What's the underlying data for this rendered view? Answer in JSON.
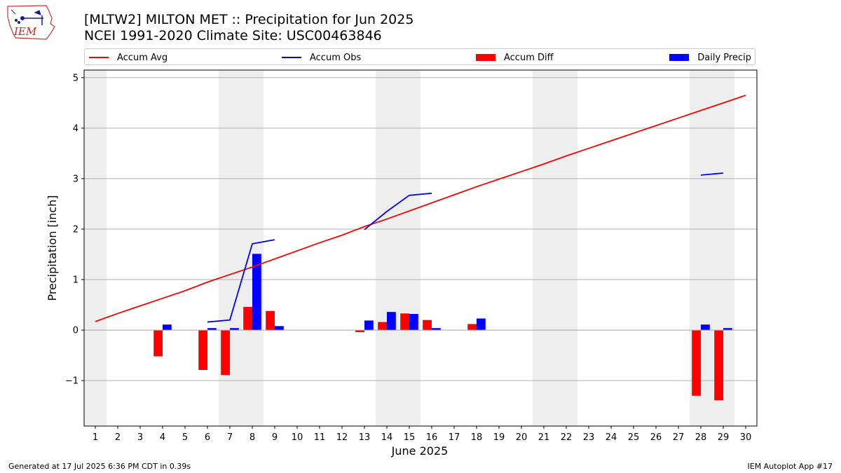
{
  "header": {
    "title_line1": "[MLTW2] MILTON MET :: Precipitation for Jun 2025",
    "title_line2": "NCEI 1991-2020 Climate Site: USC00463846"
  },
  "logo": {
    "text": "IEM"
  },
  "footer": {
    "left": "Generated at 17 Jul 2025 6:36 PM CDT in 0.39s",
    "right": "IEM Autoplot App #17"
  },
  "legend": {
    "placement": "top, above plot",
    "items": [
      {
        "label": "Accum Avg",
        "color": "#ff0000",
        "kind": "line"
      },
      {
        "label": "Accum Obs",
        "color": "#0000ff",
        "kind": "line"
      },
      {
        "label": "Accum Diff",
        "color": "#ff0000",
        "kind": "bar"
      },
      {
        "label": "Daily Precip",
        "color": "#0000ff",
        "kind": "bar"
      }
    ]
  },
  "chart_data": {
    "type": "bar",
    "xlabel": "June 2025",
    "ylabel": "Precipitation [inch]",
    "xlim": [
      0.5,
      30.5
    ],
    "ylim": [
      -1.9,
      5.15
    ],
    "grid": "horizontal",
    "x_ticks": [
      1,
      2,
      3,
      4,
      5,
      6,
      7,
      8,
      9,
      10,
      11,
      12,
      13,
      14,
      15,
      16,
      17,
      18,
      19,
      20,
      21,
      22,
      23,
      24,
      25,
      26,
      27,
      28,
      29,
      30
    ],
    "y_ticks": [
      -1,
      0,
      1,
      2,
      3,
      4,
      5
    ],
    "y_tick_labels": [
      "−1",
      "0",
      "1",
      "2",
      "3",
      "4",
      "5"
    ],
    "weekend_shading": [
      [
        0.5,
        1.5
      ],
      [
        6.5,
        8.5
      ],
      [
        13.5,
        15.5
      ],
      [
        20.5,
        22.5
      ],
      [
        27.5,
        29.5
      ]
    ],
    "shade_color": "#eeeeee",
    "series": [
      {
        "name": "Accum Avg",
        "type": "line",
        "color": "#ff0000",
        "x": [
          1,
          2,
          3,
          4,
          5,
          6,
          7,
          8,
          9,
          10,
          11,
          12,
          13,
          14,
          15,
          16,
          17,
          18,
          19,
          20,
          21,
          22,
          23,
          24,
          25,
          26,
          27,
          28,
          29,
          30
        ],
        "y": [
          0.17,
          0.33,
          0.48,
          0.63,
          0.78,
          0.95,
          1.1,
          1.25,
          1.41,
          1.57,
          1.73,
          1.88,
          2.05,
          2.2,
          2.36,
          2.52,
          2.68,
          2.84,
          2.99,
          3.14,
          3.29,
          3.45,
          3.6,
          3.75,
          3.9,
          4.05,
          4.2,
          4.35,
          4.5,
          4.65
        ]
      },
      {
        "name": "Accum Obs",
        "type": "line",
        "color": "#0000ff",
        "segments": [
          {
            "x": [
              6,
              7,
              8,
              9
            ],
            "y": [
              0.16,
              0.2,
              1.71,
              1.79
            ]
          },
          {
            "x": [
              13,
              14,
              15,
              16
            ],
            "y": [
              1.99,
              2.35,
              2.67,
              2.71
            ]
          },
          {
            "x": [
              28,
              29
            ],
            "y": [
              3.07,
              3.11
            ]
          }
        ]
      },
      {
        "name": "Accum Diff",
        "type": "bar",
        "color": "#ff0000",
        "x": [
          4,
          6,
          7,
          8,
          9,
          13,
          14,
          15,
          16,
          18,
          28,
          29
        ],
        "y": [
          -0.52,
          -0.79,
          -0.89,
          0.46,
          0.38,
          -0.04,
          0.16,
          0.33,
          0.2,
          0.12,
          -1.3,
          -1.39
        ]
      },
      {
        "name": "Daily Precip",
        "type": "bar",
        "color": "#0000ff",
        "x": [
          4,
          6,
          7,
          8,
          9,
          13,
          14,
          15,
          16,
          18,
          28,
          29
        ],
        "y": [
          0.11,
          0.04,
          0.04,
          1.51,
          0.08,
          0.19,
          0.36,
          0.32,
          0.04,
          0.23,
          0.11,
          0.04
        ]
      }
    ]
  }
}
